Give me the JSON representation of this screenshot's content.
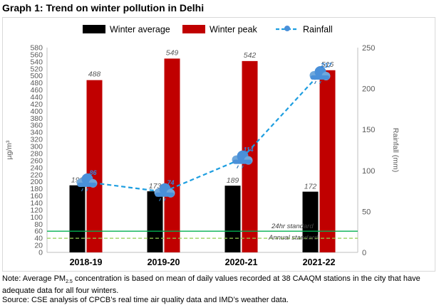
{
  "title": "Graph 1: Trend on winter pollution in Delhi",
  "chart_data": {
    "type": "bar",
    "categories": [
      "2018-19",
      "2019-20",
      "2020-21",
      "2021-22"
    ],
    "series": [
      {
        "name": "Winter average",
        "type": "bar",
        "axis": "left",
        "color": "#000000",
        "values": [
          190,
          173,
          189,
          172
        ]
      },
      {
        "name": "Winter peak",
        "type": "bar",
        "axis": "left",
        "color": "#c00000",
        "values": [
          488,
          549,
          542,
          516
        ]
      },
      {
        "name": "Rainfall",
        "type": "line",
        "axis": "right",
        "color": "#1e9ee0",
        "values": [
          86,
          74,
          114,
          217
        ]
      }
    ],
    "bar_labels": {
      "Winter average": [
        "190",
        "173",
        "189",
        "172"
      ],
      "Winter peak": [
        "488",
        "549",
        "542",
        "516"
      ],
      "Rainfall": [
        "86",
        "74",
        "114",
        "217"
      ]
    },
    "ylabel": "µg/m³",
    "ylabel_right": "Rainfall (mm)",
    "ylim": [
      0,
      580
    ],
    "ylim_right": [
      0,
      250
    ],
    "yticks": [
      0,
      20,
      40,
      60,
      80,
      100,
      120,
      140,
      160,
      180,
      200,
      220,
      240,
      260,
      280,
      300,
      320,
      340,
      360,
      380,
      400,
      420,
      440,
      460,
      480,
      500,
      520,
      540,
      560,
      580
    ],
    "yticks_right": [
      0,
      50,
      100,
      150,
      200,
      250
    ],
    "reference_lines": [
      {
        "label": "24hr standard",
        "value": 60,
        "color": "#00b050",
        "style": "solid"
      },
      {
        "label": "Annual standard",
        "value": 40,
        "color": "#92d050",
        "style": "dashed"
      }
    ],
    "legend": [
      "Winter average",
      "Winter peak",
      "Rainfall"
    ],
    "legend_position": "top"
  },
  "notes": {
    "line1_a": "Note: Average PM",
    "line1_sub": "2.5",
    "line1_b": " concentration is based on mean of daily values recorded at 38 CAAQM stations in the city that have adequate data for all four winters.",
    "line2": "Source: CSE analysis of CPCB’s real time air quality data and IMD’s weather data."
  }
}
